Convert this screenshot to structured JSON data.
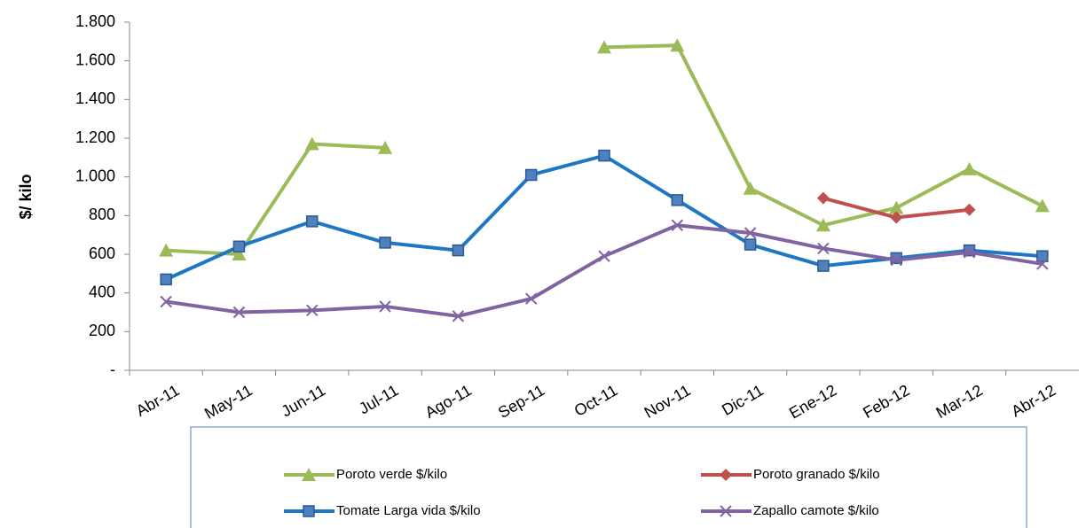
{
  "chart_data": {
    "type": "line",
    "y_label": "$/ kilo",
    "categories": [
      "Abr-11",
      "May-11",
      "Jun-11",
      "Jul-11",
      "Ago-11",
      "Sep-11",
      "Oct-11",
      "Nov-11",
      "Dic-11",
      "Ene-12",
      "Feb-12",
      "Mar-12",
      "Abr-12"
    ],
    "series": [
      {
        "name": "Poroto verde  $/kilo",
        "color": "#9bbb59",
        "marker": "triangle",
        "values": [
          620,
          600,
          1170,
          1150,
          null,
          null,
          1670,
          1680,
          940,
          750,
          840,
          1040,
          850
        ]
      },
      {
        "name": "Poroto granado  $/kilo",
        "color": "#c0504d",
        "marker": "diamond",
        "values": [
          null,
          null,
          null,
          null,
          null,
          null,
          null,
          null,
          null,
          890,
          790,
          830,
          null
        ]
      },
      {
        "name": "Tomate Larga vida  $/kilo",
        "color": "#1f77c4",
        "marker": "square",
        "values": [
          470,
          640,
          770,
          660,
          620,
          1010,
          1110,
          880,
          650,
          540,
          580,
          620,
          590
        ]
      },
      {
        "name": "Zapallo camote  $/kilo",
        "color": "#8064a2",
        "marker": "x",
        "values": [
          355,
          300,
          310,
          330,
          280,
          370,
          590,
          750,
          710,
          630,
          570,
          610,
          550
        ]
      }
    ],
    "ylim": [
      0,
      1800
    ],
    "yticks": [
      {
        "value": 0,
        "label": "-"
      },
      200,
      400,
      600,
      800,
      {
        "value": 1000,
        "label": "1.000"
      },
      {
        "value": 1200,
        "label": "1.200"
      },
      {
        "value": 1400,
        "label": "1.400"
      },
      {
        "value": 1600,
        "label": "1.600"
      },
      {
        "value": 1800,
        "label": "1.800"
      }
    ],
    "legend": "bottom"
  }
}
